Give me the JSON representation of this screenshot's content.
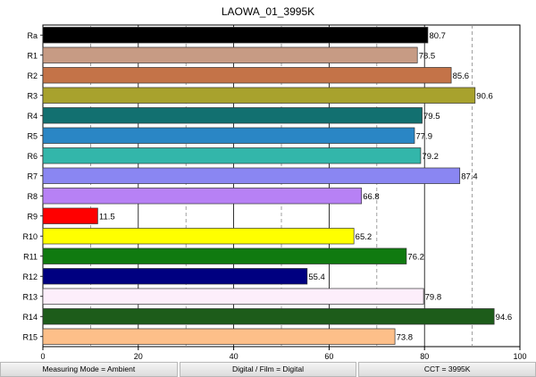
{
  "chart_data": {
    "type": "bar",
    "orientation": "horizontal",
    "title": "LAOWA_01_3995K",
    "categories": [
      "Ra",
      "R1",
      "R2",
      "R3",
      "R4",
      "R5",
      "R6",
      "R7",
      "R8",
      "R9",
      "R10",
      "R11",
      "R12",
      "R13",
      "R14",
      "R15"
    ],
    "values": [
      80.7,
      78.5,
      85.6,
      90.6,
      79.5,
      77.9,
      79.2,
      87.4,
      66.8,
      11.5,
      65.2,
      76.2,
      55.4,
      79.8,
      94.6,
      73.8
    ],
    "value_labels": [
      "80.7",
      "78.5",
      "85.6",
      "90.6",
      "79.5",
      "77.9",
      "79.2",
      "87.4",
      "66.8",
      "11.5",
      "65.2",
      "76.2",
      "55.4",
      "79.8",
      "94.6",
      "73.8"
    ],
    "colors": [
      "#000000",
      "#c79b84",
      "#c47348",
      "#a8a22d",
      "#127070",
      "#2a86c5",
      "#33b6aa",
      "#8a86f2",
      "#b781f5",
      "#ff0000",
      "#ffff00",
      "#107a10",
      "#000080",
      "#fdeefb",
      "#1d5c1a",
      "#fdbf89"
    ],
    "xlim": [
      0,
      100
    ],
    "xticks": [
      "0",
      "20",
      "40",
      "60",
      "80",
      "100"
    ],
    "grid": true,
    "reference_lines": [
      70,
      90
    ]
  },
  "status_bar": {
    "measuring_mode": "Measuring Mode = Ambient",
    "film_mode": "Digital / Film = Digital",
    "cct": "CCT = 3995K"
  }
}
